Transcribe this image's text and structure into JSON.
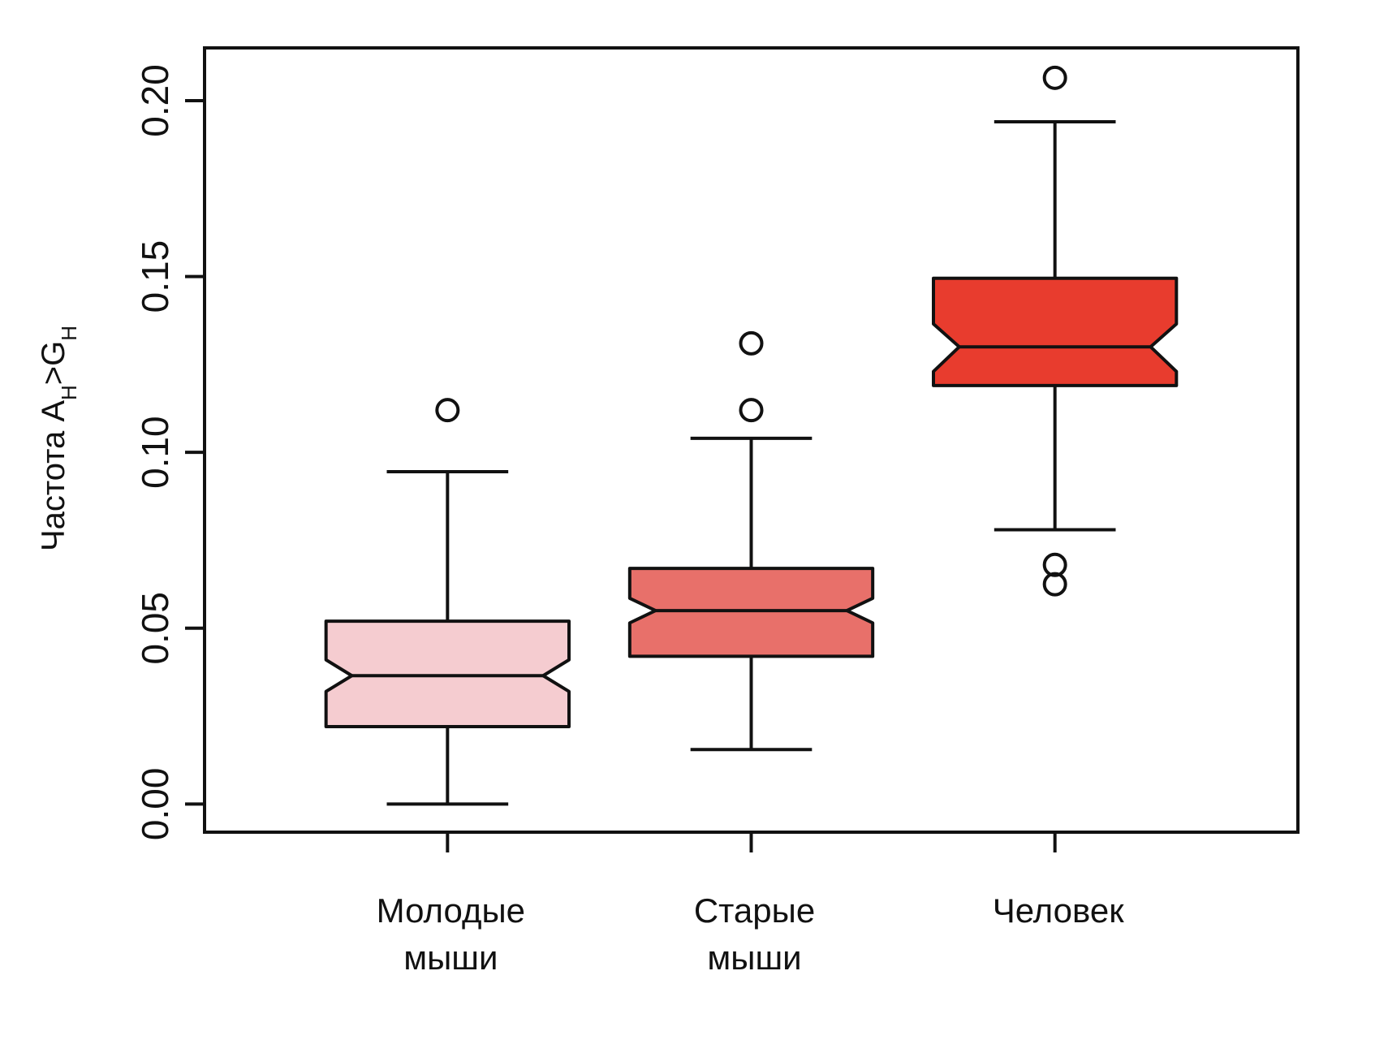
{
  "chart_data": {
    "type": "boxplot",
    "notched": true,
    "ylabel": {
      "prefix": "Частота A",
      "sub1": "H",
      "middle": ">G",
      "sub2": "H"
    },
    "ylim": [
      -0.008,
      0.215
    ],
    "yticks": [
      0.0,
      0.05,
      0.1,
      0.15,
      0.2
    ],
    "ytick_labels": [
      "0.00",
      "0.05",
      "0.10",
      "0.15",
      "0.20"
    ],
    "grid": false,
    "legend": "none",
    "categories": [
      {
        "lines": [
          "Молодые",
          "мыши"
        ],
        "color": "#f5ccd0"
      },
      {
        "lines": [
          "Старые",
          "мыши"
        ],
        "color": "#e8706a"
      },
      {
        "lines": [
          "Человек"
        ],
        "color": "#e83c2e"
      }
    ],
    "boxes": [
      {
        "whisker_low": 0.0,
        "q1": 0.022,
        "notch_low": 0.032,
        "median": 0.0365,
        "notch_high": 0.041,
        "q3": 0.052,
        "whisker_high": 0.0945,
        "outliers": [
          0.112
        ]
      },
      {
        "whisker_low": 0.0155,
        "q1": 0.042,
        "notch_low": 0.0515,
        "median": 0.055,
        "notch_high": 0.0585,
        "q3": 0.067,
        "whisker_high": 0.104,
        "outliers": [
          0.112,
          0.131
        ]
      },
      {
        "whisker_low": 0.078,
        "q1": 0.119,
        "notch_low": 0.123,
        "median": 0.13,
        "notch_high": 0.1365,
        "q3": 0.1495,
        "whisker_high": 0.194,
        "outliers": [
          0.0625,
          0.068,
          0.2065
        ]
      }
    ]
  }
}
